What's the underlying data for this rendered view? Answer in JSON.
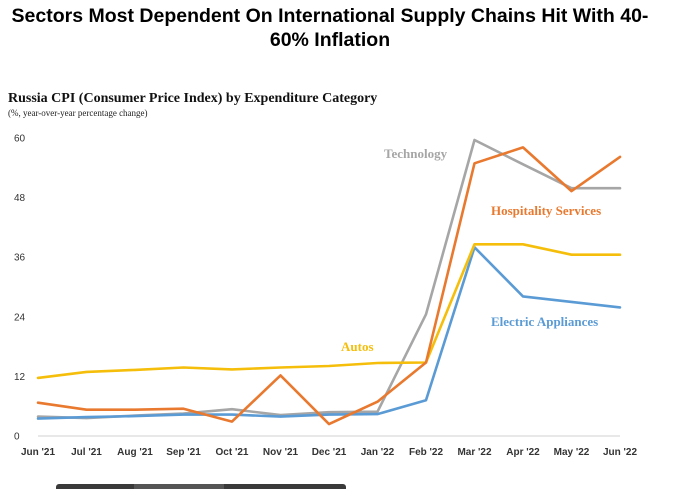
{
  "header": {
    "title": "Sectors Most Dependent On International Supply Chains Hit With 40-60% Inflation"
  },
  "chart_data": {
    "type": "line",
    "title": "Russia CPI (Consumer Price Index) by Expenditure Category",
    "subtitle": "(%, year-over-year percentage change)",
    "xlabel": "",
    "ylabel": "",
    "ylim": [
      0,
      60
    ],
    "yticks": [
      0,
      12,
      24,
      36,
      48,
      60
    ],
    "grid": false,
    "legend": "inline labels",
    "categories": [
      "Jun '21",
      "Jul '21",
      "Aug '21",
      "Sep '21",
      "Oct '21",
      "Nov '21",
      "Dec '21",
      "Jan '22",
      "Feb '22",
      "Mar '22",
      "Apr '22",
      "May '22",
      "Jun '22"
    ],
    "series": [
      {
        "name": "Autos",
        "color": "#f5be0b",
        "values": [
          11.7,
          12.9,
          13.3,
          13.8,
          13.4,
          13.8,
          14.1,
          14.7,
          14.8,
          38.6,
          38.6,
          36.5,
          36.5
        ]
      },
      {
        "name": "Hospitality Services",
        "color": "#e8792f",
        "values": [
          6.7,
          5.3,
          5.3,
          5.5,
          2.9,
          12.2,
          2.4,
          6.9,
          14.8,
          54.9,
          58.1,
          49.3,
          56.2
        ]
      },
      {
        "name": "Technology",
        "color": "#a6a6a6",
        "values": [
          3.9,
          3.6,
          4.1,
          4.5,
          5.4,
          4.2,
          4.8,
          4.9,
          24.5,
          59.6,
          54.7,
          49.9,
          49.9
        ]
      },
      {
        "name": "Electric Appliances",
        "color": "#5b9bd5",
        "values": [
          3.5,
          3.8,
          4.0,
          4.3,
          4.3,
          3.9,
          4.3,
          4.4,
          7.2,
          38.0,
          28.1,
          27.0,
          25.9
        ]
      }
    ]
  }
}
